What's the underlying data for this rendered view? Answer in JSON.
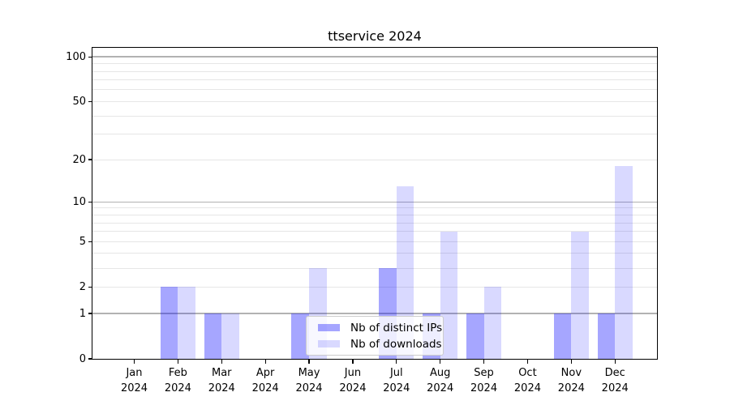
{
  "title": "ttservice 2024",
  "chart_data": {
    "type": "bar",
    "title": "ttservice 2024",
    "categories": [
      "Jan 2024",
      "Feb 2024",
      "Mar 2024",
      "Apr 2024",
      "May 2024",
      "Jun 2024",
      "Jul 2024",
      "Aug 2024",
      "Sep 2024",
      "Oct 2024",
      "Nov 2024",
      "Dec 2024"
    ],
    "x_tick_line1": [
      "Jan",
      "Feb",
      "Mar",
      "Apr",
      "May",
      "Jun",
      "Jul",
      "Aug",
      "Sep",
      "Oct",
      "Nov",
      "Dec"
    ],
    "x_tick_line2": [
      "2024",
      "2024",
      "2024",
      "2024",
      "2024",
      "2024",
      "2024",
      "2024",
      "2024",
      "2024",
      "2024",
      "2024"
    ],
    "series": [
      {
        "name": "Nb of distinct IPs",
        "color": "rgba(0,0,255,0.35)",
        "values": [
          0,
          2,
          1,
          0,
          1,
          0,
          3,
          1,
          1,
          0,
          1,
          1
        ]
      },
      {
        "name": "Nb of downloads",
        "color": "rgba(0,0,255,0.15)",
        "values": [
          0,
          2,
          1,
          0,
          3,
          0,
          13,
          6,
          2,
          0,
          6,
          18
        ]
      }
    ],
    "xlabel": "",
    "ylabel": "",
    "y_scale": "log10(1+x)",
    "y_ticks": [
      0,
      1,
      2,
      5,
      10,
      20,
      50,
      100
    ],
    "y_max": 115,
    "grid_major": [
      1,
      10,
      100
    ],
    "grid_minor": [
      2,
      3,
      4,
      5,
      6,
      7,
      8,
      9,
      20,
      30,
      40,
      50,
      60,
      70,
      80,
      90
    ],
    "legend_position": "lower center",
    "colors": {
      "major_grid": "#b2b2b2",
      "minor_grid": "#e6e6e6",
      "spine": "#000000",
      "background": "#ffffff"
    }
  }
}
